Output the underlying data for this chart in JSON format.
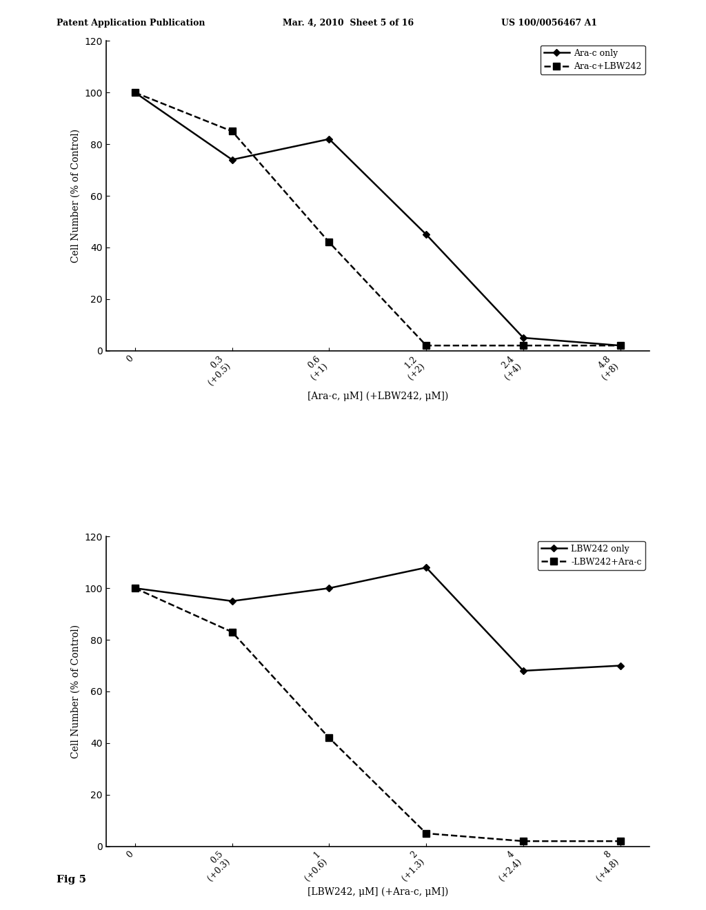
{
  "top_chart": {
    "x_positions": [
      0,
      1,
      2,
      3,
      4,
      5
    ],
    "x_labels": [
      "0",
      "0.3\n(+0.5)",
      "0.6\n(+1)",
      "1.2\n(+2)",
      "2.4\n(+4)",
      "4.8\n(+8)"
    ],
    "series1_y": [
      100,
      74,
      82,
      45,
      5,
      2
    ],
    "series2_y": [
      100,
      85,
      42,
      2,
      2,
      2
    ],
    "series1_label": "Ara-c only",
    "series2_label": "Ara-c+LBW242",
    "ylabel": "Cell Number (% of Control)",
    "xlabel": "[Ara-c, μM] (+LBW242, μM])",
    "ylim": [
      0,
      120
    ],
    "yticks": [
      0,
      20,
      40,
      60,
      80,
      100,
      120
    ]
  },
  "bottom_chart": {
    "x_positions": [
      0,
      1,
      2,
      3,
      4,
      5
    ],
    "x_labels": [
      "0",
      "0.5\n(+0.3)",
      "1\n(+0.6)",
      "2\n(+1.3)",
      "4\n(+2.4)",
      "8\n(+4.8)"
    ],
    "series1_y": [
      100,
      95,
      100,
      108,
      68,
      70
    ],
    "series2_y": [
      100,
      83,
      42,
      5,
      2,
      2
    ],
    "series1_label": "LBW242 only",
    "series2_label": "-LBW242+Ara-c",
    "ylabel": "Cell Number (% of Control)",
    "xlabel": "[LBW242, μM] (+Ara-c, μM])",
    "ylim": [
      0,
      120
    ],
    "yticks": [
      0,
      20,
      40,
      60,
      80,
      100,
      120
    ]
  },
  "fig5_label": "Fig 5",
  "background_color": "#ffffff",
  "header_left": "Patent Application Publication",
  "header_mid": "Mar. 4, 2010  Sheet 5 of 16",
  "header_right": "US 100/0056467 A1"
}
